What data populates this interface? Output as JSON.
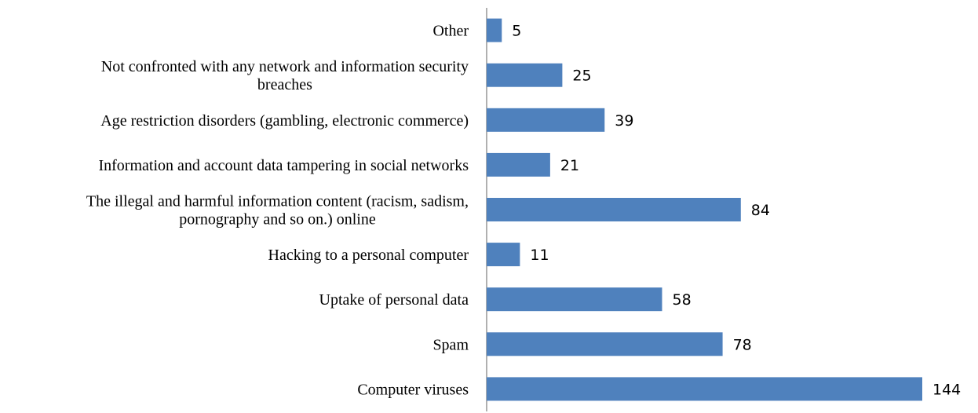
{
  "chart_data": {
    "type": "bar",
    "orientation": "horizontal",
    "categories": [
      "Other",
      "Not confronted with any network and information security breaches",
      "Age restriction disorders (gambling, electronic commerce)",
      "Information and account data tampering in social networks",
      "The illegal and harmful information content (racism, sadism, pornography and so on.) online",
      "Hacking to a personal computer",
      "Uptake of personal data",
      "Spam",
      "Computer viruses"
    ],
    "category_lines": [
      [
        "Other"
      ],
      [
        "Not confronted with any network and information security",
        "breaches"
      ],
      [
        "Age restriction disorders (gambling, electronic commerce)"
      ],
      [
        "Information and account data tampering in social networks"
      ],
      [
        "The illegal and harmful information content (racism, sadism,",
        "pornography and so on.) online"
      ],
      [
        "Hacking to a personal computer"
      ],
      [
        "Uptake of personal data"
      ],
      [
        "Spam"
      ],
      [
        "Computer viruses"
      ]
    ],
    "values": [
      5,
      25,
      39,
      21,
      84,
      11,
      58,
      78,
      144
    ],
    "xlim": [
      0,
      144
    ],
    "data_labels": true,
    "grid": false,
    "legend": "none",
    "title": "",
    "xlabel": "",
    "ylabel": ""
  },
  "colors": {
    "bar": "#4f81bd",
    "axis": "#868686",
    "text": "#000000"
  }
}
